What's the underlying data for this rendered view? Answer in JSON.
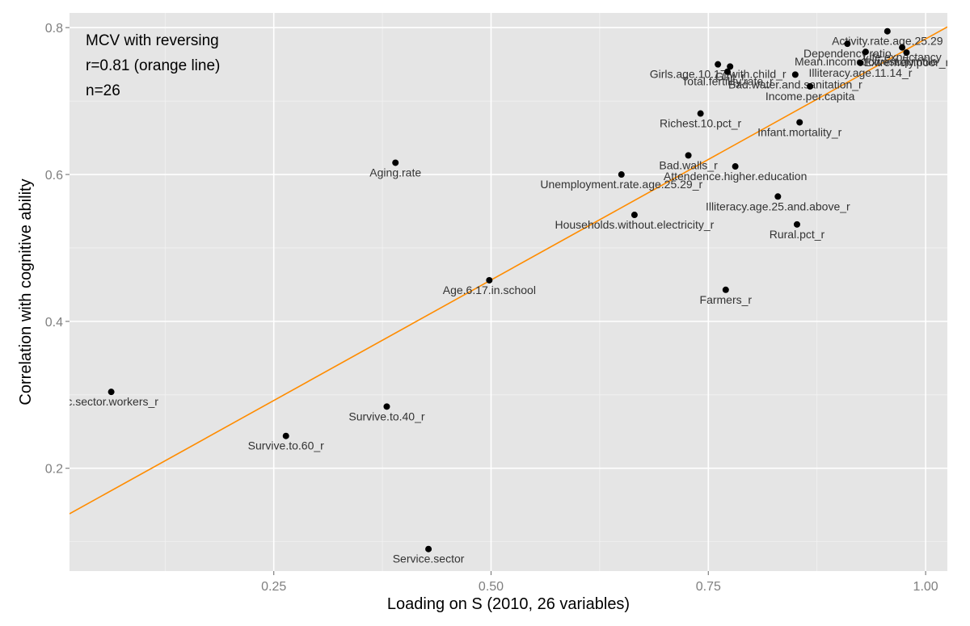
{
  "chart_data": {
    "type": "scatter",
    "title": "",
    "xlabel": "Loading on S (2010, 26 variables)",
    "ylabel": "Correlation with cognitive ability",
    "xlim": [
      0.015,
      1.025
    ],
    "ylim": [
      0.06,
      0.82
    ],
    "x_ticks": [
      0.25,
      0.5,
      0.75,
      1.0
    ],
    "x_tick_labels": [
      "0.25",
      "0.50",
      "0.75",
      "1.00"
    ],
    "y_ticks": [
      0.2,
      0.4,
      0.6,
      0.8
    ],
    "y_tick_labels": [
      "0.2",
      "0.4",
      "0.6",
      "0.8"
    ],
    "grid": true,
    "background": "#e5e5e5",
    "point_color": "#000000",
    "line_color": "#ff8c00",
    "annotations": [
      "MCV with reversing",
      "r=0.81 (orange line)",
      "n=26"
    ],
    "fit_line": {
      "x": [
        0.015,
        1.025
      ],
      "y": [
        0.138,
        0.801
      ]
    },
    "points": [
      {
        "label": "ic.sector.workers_r",
        "x": 0.063,
        "y": 0.304
      },
      {
        "label": "Survive.to.60_r",
        "x": 0.264,
        "y": 0.244
      },
      {
        "label": "Survive.to.40_r",
        "x": 0.38,
        "y": 0.284
      },
      {
        "label": "Service.sector",
        "x": 0.428,
        "y": 0.09
      },
      {
        "label": "Aging.rate",
        "x": 0.39,
        "y": 0.616
      },
      {
        "label": "Age.6.17.in.school",
        "x": 0.498,
        "y": 0.456
      },
      {
        "label": "Unemployment.rate.age.25.29_r",
        "x": 0.65,
        "y": 0.6
      },
      {
        "label": "Households.without.electricity_r",
        "x": 0.665,
        "y": 0.545
      },
      {
        "label": "Bad.walls_r",
        "x": 0.727,
        "y": 0.626
      },
      {
        "label": "Attendence.higher.education",
        "x": 0.781,
        "y": 0.611
      },
      {
        "label": "Richest.10.pct_r",
        "x": 0.741,
        "y": 0.683
      },
      {
        "label": "Farmers_r",
        "x": 0.77,
        "y": 0.443
      },
      {
        "label": "Illiteracy.age.25.and.above_r",
        "x": 0.83,
        "y": 0.57
      },
      {
        "label": "Rural.pct_r",
        "x": 0.852,
        "y": 0.532
      },
      {
        "label": "Infant.mortality_r",
        "x": 0.855,
        "y": 0.671
      },
      {
        "label": "Girls.age.10.17.with.child_r",
        "x": 0.761,
        "y": 0.75
      },
      {
        "label": "Gini_r",
        "x": 0.775,
        "y": 0.747
      },
      {
        "label": "Total.fertility.rate_r",
        "x": 0.772,
        "y": 0.74
      },
      {
        "label": "Bad.water.and.sanitation_r",
        "x": 0.85,
        "y": 0.736
      },
      {
        "label": "Income.per.capita",
        "x": 0.867,
        "y": 0.72
      },
      {
        "label": "Illiteracy.age.11.14_r",
        "x": 0.925,
        "y": 0.752
      },
      {
        "label": "Dependency.ratio",
        "x": 0.91,
        "y": 0.778
      },
      {
        "label": "Activity.rate.age.25.29",
        "x": 0.956,
        "y": 0.795
      },
      {
        "label": "Mean.income.lowest.quintile",
        "x": 0.931,
        "y": 0.767
      },
      {
        "label": "Life.expectancy",
        "x": 0.973,
        "y": 0.773
      },
      {
        "label": "Extremely.poor_r",
        "x": 0.978,
        "y": 0.766
      }
    ]
  }
}
